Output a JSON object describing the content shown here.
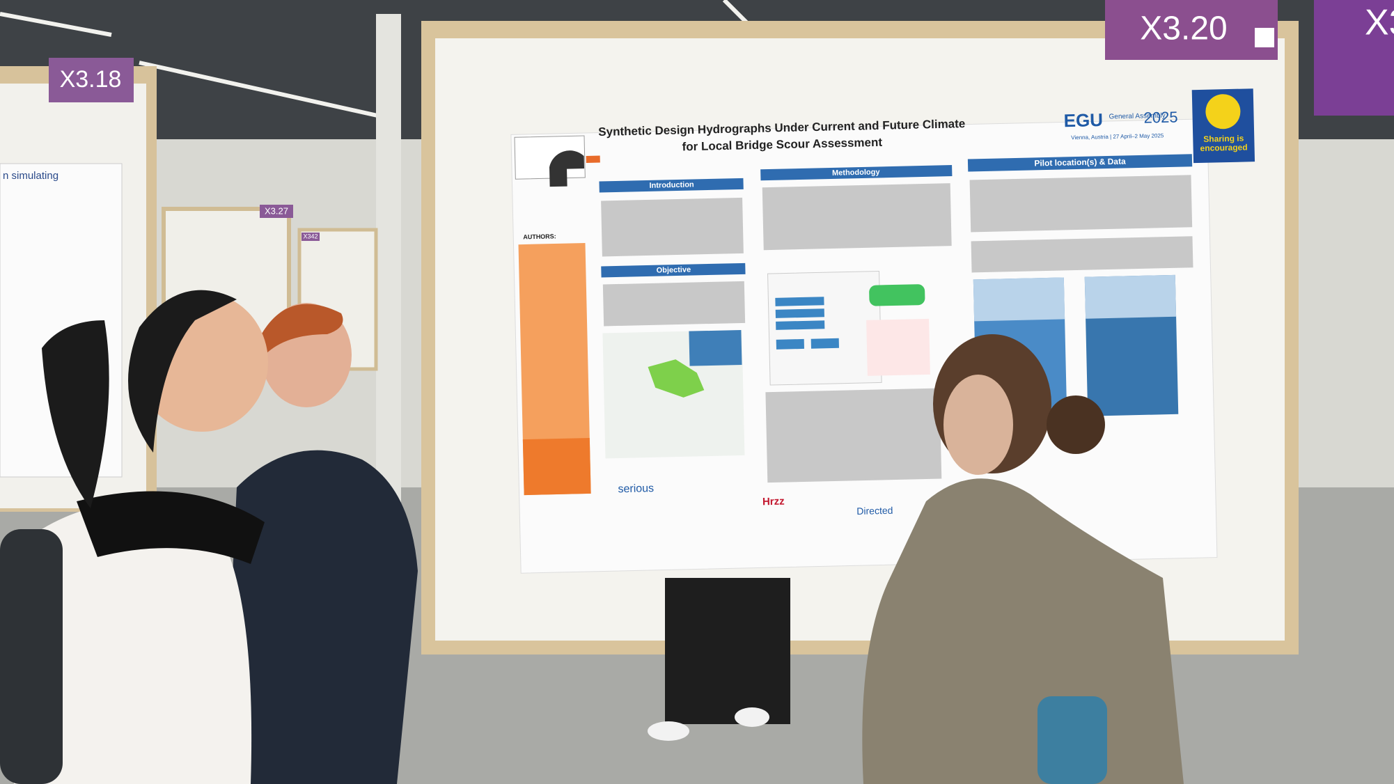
{
  "signs": {
    "main": "X3.20",
    "left": "X3.18",
    "far": "X3.27",
    "far2": "X342",
    "right": "X3"
  },
  "poster": {
    "title_lines": [
      "Synthetic Design Hydrographs Under Current and Future Climate",
      "for Local Bridge Scour Assessment"
    ],
    "egu": {
      "name": "EGU",
      "sub": "General Assembly",
      "year": "2025",
      "place": "Vienna, Austria | 27 April–2 May 2025"
    },
    "sharing": "Sharing is encouraged",
    "authors_heading": "AUTHORS:",
    "sections": {
      "introduction": "Introduction",
      "objective": "Objective",
      "methodology": "Methodology",
      "pilot": "Pilot location(s) & Data"
    },
    "footer": {
      "serious": "serious",
      "hrzz": "Hrzz",
      "directed": "Directed"
    }
  },
  "left_poster": {
    "heading": "n simulating"
  }
}
